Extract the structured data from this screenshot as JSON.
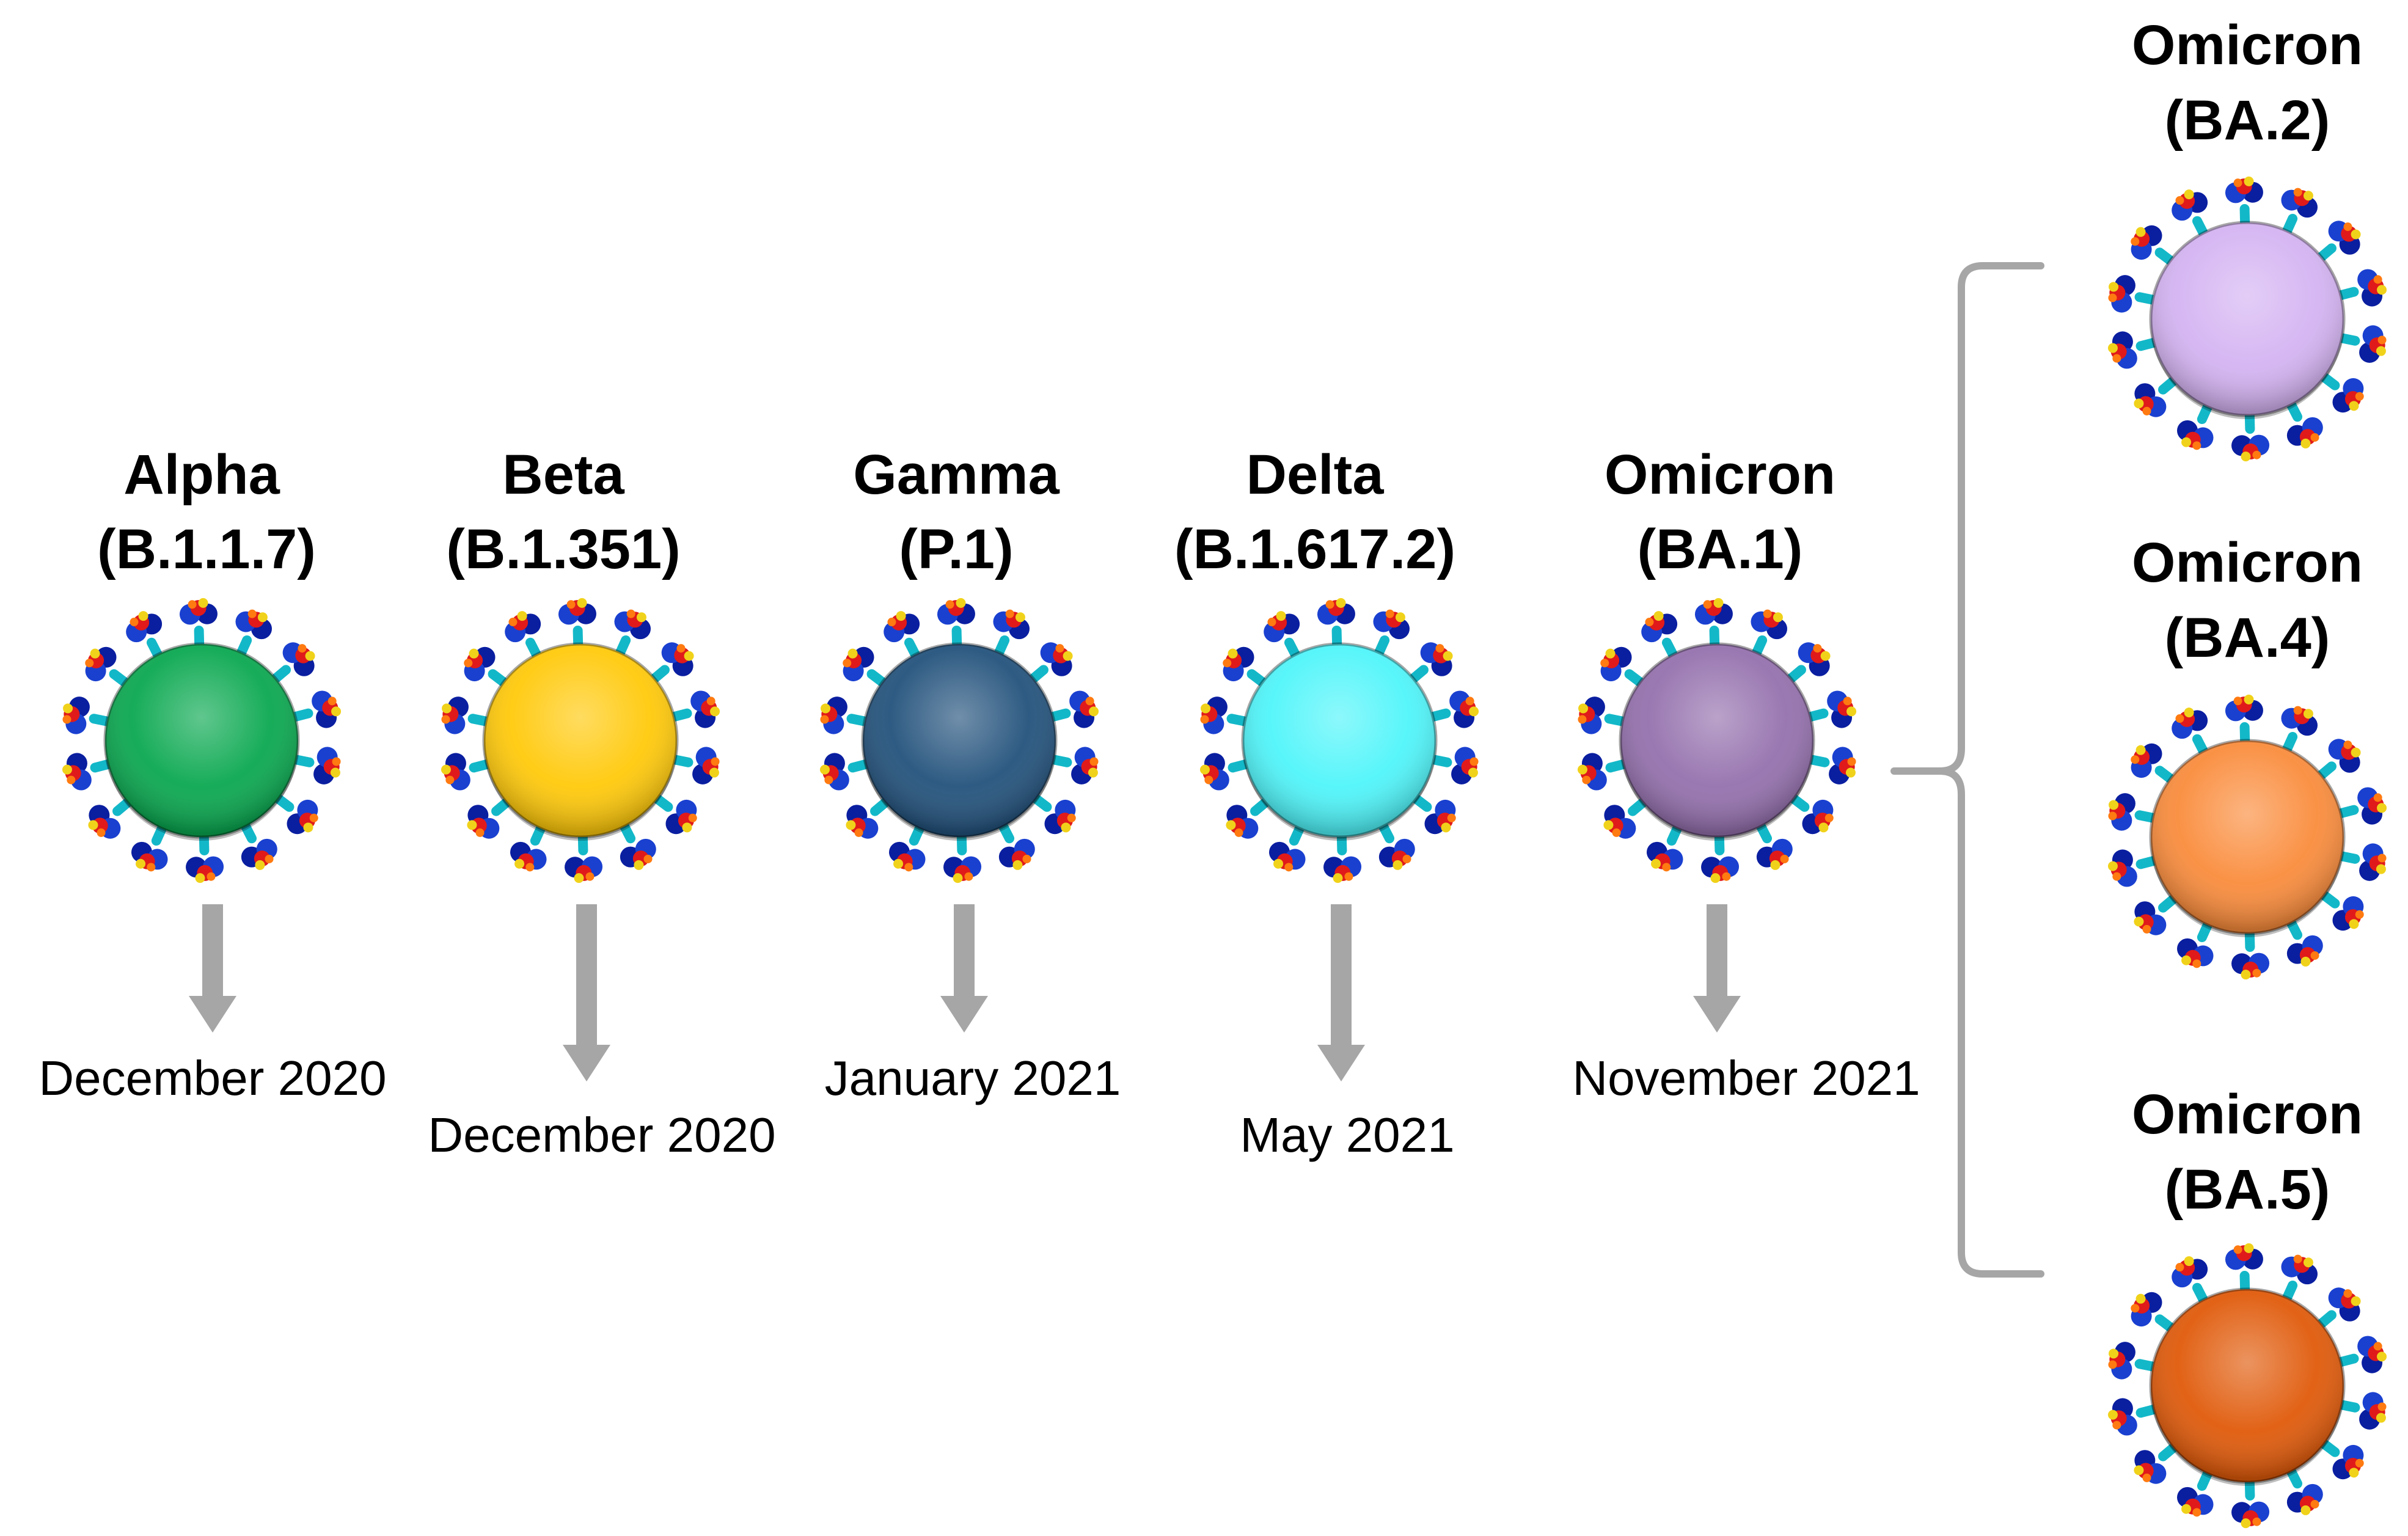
{
  "variants": [
    {
      "name": "Alpha",
      "lineage": "(B.1.1.7)",
      "date": "December 2020",
      "color": "#0aa850"
    },
    {
      "name": "Beta",
      "lineage": "(B.1.351)",
      "date": "December 2020",
      "color": "#ffc90a"
    },
    {
      "name": "Gamma",
      "lineage": "(P.1)",
      "date": "January 2021",
      "color": "#23527c"
    },
    {
      "name": "Delta",
      "lineage": "(B.1.617.2)",
      "date": "May 2021",
      "color": "#4ff5fa"
    },
    {
      "name": "Omicron",
      "lineage": "(BA.1)",
      "date": "November 2021",
      "color": "#9470ad"
    }
  ],
  "subvariants": [
    {
      "name": "Omicron",
      "lineage": "(BA.2)",
      "color": "#d4b3f2"
    },
    {
      "name": "Omicron",
      "lineage": "(BA.4)",
      "color": "#fa8c3c"
    },
    {
      "name": "Omicron",
      "lineage": "(BA.5)",
      "color": "#e05a0a"
    }
  ],
  "colors": {
    "arrow": "#a6a6a6",
    "bracket": "#a6a6a6",
    "spike_colors": [
      "#0a1ea0",
      "#1a40d0",
      "#13b8c8",
      "#e01a1a",
      "#f0d21a",
      "#ff7a10"
    ]
  }
}
